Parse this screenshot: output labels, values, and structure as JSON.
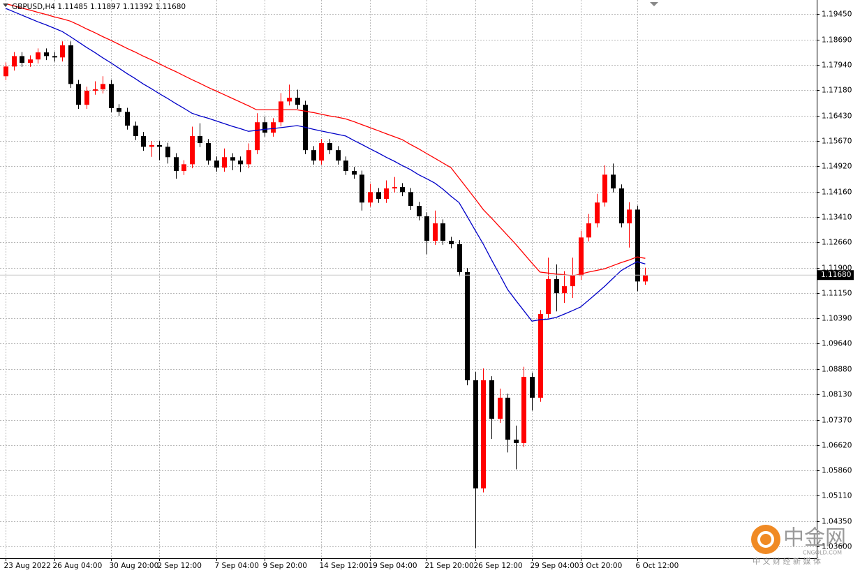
{
  "chart_data": {
    "type": "candlestick",
    "title": "GBPUSD,H4  1.11485 1.11897 1.11392 1.11680",
    "categories": [
      "23 Aug 2022",
      null,
      null,
      null,
      null,
      null,
      "26 Aug 04:00",
      null,
      null,
      null,
      null,
      null,
      null,
      "30 Aug 20:00",
      null,
      null,
      null,
      null,
      null,
      "2 Sep 12:00",
      null,
      null,
      null,
      null,
      null,
      null,
      "7 Sep 04:00",
      null,
      null,
      null,
      null,
      null,
      "9 Sep 20:00",
      null,
      null,
      null,
      null,
      null,
      null,
      "14 Sep 12:00",
      null,
      null,
      null,
      null,
      null,
      "19 Sep 04:00",
      null,
      null,
      null,
      null,
      null,
      null,
      "21 Sep 20:00",
      null,
      null,
      null,
      null,
      null,
      "26 Sep 12:00",
      null,
      null,
      null,
      null,
      null,
      null,
      "29 Sep 04:00",
      null,
      null,
      null,
      null,
      null,
      "3 Oct 20:00",
      null,
      null,
      null,
      null,
      null,
      null,
      "6 Oct 12:00",
      null
    ],
    "open": [
      1.176,
      1.1789,
      1.182,
      1.18,
      1.181,
      1.1831,
      1.182,
      1.1816,
      1.1852,
      1.1737,
      1.1675,
      1.1717,
      1.1721,
      1.1737,
      1.1665,
      1.1654,
      1.1613,
      1.1582,
      1.155,
      1.1555,
      1.155,
      1.1519,
      1.1478,
      1.1498,
      1.1582,
      1.1561,
      1.1509,
      1.1488,
      1.1519,
      1.1509,
      1.1498,
      1.154,
      1.1623,
      1.1592,
      1.1623,
      1.1685,
      1.1696,
      1.1675,
      1.154,
      1.1509,
      1.1561,
      1.154,
      1.1509,
      1.1478,
      1.1467,
      1.1384,
      1.1415,
      1.1395,
      1.1426,
      1.143,
      1.1415,
      1.1374,
      1.1343,
      1.127,
      1.1322,
      1.127,
      1.126,
      1.1177,
      1.0855,
      1.0533,
      1.0855,
      1.074,
      1.0803,
      1.0678,
      1.0668,
      1.0865,
      1.0803,
      1.1052,
      1.1156,
      1.1114,
      1.1135,
      1.1166,
      1.128,
      1.1322,
      1.1384,
      1.1467,
      1.1426,
      1.1322,
      1.1363,
      1.1149
    ],
    "high": [
      1.1801,
      1.1832,
      1.1832,
      1.1822,
      1.1843,
      1.1843,
      1.1832,
      1.1864,
      1.1864,
      1.1749,
      1.1729,
      1.1745,
      1.176,
      1.1749,
      1.1677,
      1.1666,
      1.1625,
      1.1594,
      1.1567,
      1.1567,
      1.1562,
      1.1531,
      1.151,
      1.161,
      1.162,
      1.1573,
      1.1521,
      1.1545,
      1.1531,
      1.1521,
      1.156,
      1.165,
      1.164,
      1.1635,
      1.171,
      1.1735,
      1.172,
      1.1687,
      1.1552,
      1.1573,
      1.1573,
      1.1552,
      1.1521,
      1.149,
      1.1479,
      1.144,
      1.1427,
      1.145,
      1.146,
      1.1442,
      1.1427,
      1.1386,
      1.1355,
      1.136,
      1.1334,
      1.1282,
      1.1272,
      1.1189,
      1.088,
      1.089,
      1.0867,
      1.083,
      1.0815,
      1.072,
      1.0895,
      1.0877,
      1.1064,
      1.122,
      1.12,
      1.118,
      1.122,
      1.13,
      1.135,
      1.141,
      1.1495,
      1.15,
      1.1438,
      1.1385,
      1.1375,
      1.119
    ],
    "low": [
      1.1748,
      1.1777,
      1.1788,
      1.1788,
      1.1798,
      1.1808,
      1.1804,
      1.1804,
      1.1725,
      1.1663,
      1.1663,
      1.1705,
      1.1709,
      1.1653,
      1.1642,
      1.1601,
      1.157,
      1.1538,
      1.152,
      1.151,
      1.15,
      1.1455,
      1.1466,
      1.1486,
      1.1549,
      1.1497,
      1.1476,
      1.1476,
      1.148,
      1.1475,
      1.1486,
      1.1528,
      1.158,
      1.158,
      1.1611,
      1.1673,
      1.1663,
      1.1528,
      1.1497,
      1.1497,
      1.1528,
      1.1497,
      1.1466,
      1.1455,
      1.136,
      1.1372,
      1.1383,
      1.1383,
      1.1414,
      1.1403,
      1.1362,
      1.1331,
      1.123,
      1.1258,
      1.1258,
      1.1248,
      1.1165,
      1.084,
      1.0355,
      1.0521,
      1.068,
      1.0728,
      1.064,
      1.059,
      1.0656,
      1.0765,
      1.0791,
      1.104,
      1.106,
      1.1085,
      1.11,
      1.1154,
      1.1268,
      1.131,
      1.1372,
      1.1414,
      1.131,
      1.125,
      1.112,
      1.1139
    ],
    "close": [
      1.1789,
      1.182,
      1.18,
      1.181,
      1.1831,
      1.182,
      1.1816,
      1.1852,
      1.1737,
      1.1675,
      1.1717,
      1.1721,
      1.1737,
      1.1665,
      1.1654,
      1.1613,
      1.1582,
      1.155,
      1.1555,
      1.155,
      1.1519,
      1.1478,
      1.1498,
      1.1582,
      1.1561,
      1.1509,
      1.1488,
      1.1519,
      1.1509,
      1.1498,
      1.154,
      1.1623,
      1.1592,
      1.1623,
      1.1685,
      1.1696,
      1.1675,
      1.154,
      1.1509,
      1.1561,
      1.154,
      1.1509,
      1.1478,
      1.1467,
      1.1384,
      1.1415,
      1.1395,
      1.1426,
      1.143,
      1.1415,
      1.1374,
      1.1343,
      1.127,
      1.1322,
      1.127,
      1.126,
      1.1177,
      1.0855,
      1.0533,
      1.0855,
      1.074,
      1.0803,
      1.0678,
      1.0668,
      1.0865,
      1.0803,
      1.1052,
      1.1156,
      1.1114,
      1.1135,
      1.1166,
      1.128,
      1.1322,
      1.1384,
      1.1467,
      1.1426,
      1.1322,
      1.1363,
      1.1149,
      1.1168
    ],
    "up_color": "#ff0000",
    "down_color": "#000000",
    "lines": [
      {
        "color": "#0000c8",
        "values": [
          1.1962,
          1.1952,
          1.1942,
          1.1932,
          1.1922,
          1.1913,
          1.1903,
          1.1893,
          1.1878,
          1.1862,
          1.1846,
          1.1831,
          1.1815,
          1.18,
          1.1784,
          1.1768,
          1.1753,
          1.1737,
          1.1723,
          1.1708,
          1.1694,
          1.1679,
          1.1665,
          1.165,
          1.1642,
          1.1635,
          1.1627,
          1.1619,
          1.1611,
          1.1604,
          1.1596,
          1.1599,
          1.1602,
          1.1604,
          1.1607,
          1.161,
          1.1613,
          1.1608,
          1.1602,
          1.1597,
          1.1592,
          1.1587,
          1.1582,
          1.1569,
          1.1557,
          1.1544,
          1.1532,
          1.1519,
          1.1507,
          1.1494,
          1.1482,
          1.1467,
          1.1455,
          1.1442,
          1.1424,
          1.1403,
          1.1384,
          1.1343,
          1.1301,
          1.126,
          1.1214,
          1.117,
          1.1125,
          1.1093,
          1.1062,
          1.1031,
          1.1035,
          1.1037,
          1.1042,
          1.1052,
          1.1062,
          1.1073,
          1.1093,
          1.1114,
          1.1135,
          1.1158,
          1.1181,
          1.1195,
          1.1208,
          1.1201
        ]
      },
      {
        "color": "#ff0000",
        "values": [
          1.1976,
          1.197,
          1.1963,
          1.1957,
          1.195,
          1.1944,
          1.1937,
          1.1931,
          1.1924,
          1.1913,
          1.1901,
          1.189,
          1.1878,
          1.1867,
          1.1855,
          1.1843,
          1.1832,
          1.182,
          1.1809,
          1.1797,
          1.1785,
          1.1774,
          1.1762,
          1.175,
          1.1739,
          1.1727,
          1.1716,
          1.1705,
          1.1694,
          1.1683,
          1.1672,
          1.166,
          1.166,
          1.166,
          1.166,
          1.166,
          1.166,
          1.1656,
          1.1652,
          1.1647,
          1.1642,
          1.1638,
          1.1633,
          1.1625,
          1.1616,
          1.1607,
          1.1598,
          1.1589,
          1.158,
          1.1571,
          1.1557,
          1.1544,
          1.153,
          1.1516,
          1.1502,
          1.1488,
          1.1457,
          1.1426,
          1.1395,
          1.1363,
          1.1338,
          1.1312,
          1.1286,
          1.126,
          1.1232,
          1.1204,
          1.1177,
          1.1174,
          1.1171,
          1.1169,
          1.1166,
          1.1171,
          1.1177,
          1.1182,
          1.1187,
          1.1196,
          1.1205,
          1.1213,
          1.1222,
          1.1218
        ]
      }
    ],
    "ylim": [
      1.0325,
      1.1987
    ],
    "yticks": [
      {
        "value": 1.1945,
        "label": "1.19450"
      },
      {
        "value": 1.1869,
        "label": "1.18690"
      },
      {
        "value": 1.1794,
        "label": "1.17940"
      },
      {
        "value": 1.1718,
        "label": "1.17180"
      },
      {
        "value": 1.1643,
        "label": "1.16430"
      },
      {
        "value": 1.1567,
        "label": "1.15670"
      },
      {
        "value": 1.1492,
        "label": "1.14920"
      },
      {
        "value": 1.1416,
        "label": "1.14160"
      },
      {
        "value": 1.1341,
        "label": "1.13410"
      },
      {
        "value": 1.1266,
        "label": "1.12660"
      },
      {
        "value": 1.119,
        "label": "1.11900"
      },
      {
        "value": 1.1115,
        "label": "1.11150"
      },
      {
        "value": 1.1039,
        "label": "1.10390"
      },
      {
        "value": 1.0964,
        "label": "1.09640"
      },
      {
        "value": 1.0888,
        "label": "1.08880"
      },
      {
        "value": 1.0813,
        "label": "1.08130"
      },
      {
        "value": 1.0737,
        "label": "1.07370"
      },
      {
        "value": 1.0662,
        "label": "1.06620"
      },
      {
        "value": 1.0586,
        "label": "1.05860"
      },
      {
        "value": 1.0511,
        "label": "1.05110"
      },
      {
        "value": 1.0435,
        "label": "1.04350"
      },
      {
        "value": 1.036,
        "label": "1.03600"
      }
    ],
    "last_price": {
      "value": 1.1168,
      "label": "1.11680"
    },
    "grid": true
  },
  "watermark": {
    "logo": "中金网",
    "site": "CNGOLD.COM",
    "tagline": "中 文 财 经 新 媒 体"
  }
}
